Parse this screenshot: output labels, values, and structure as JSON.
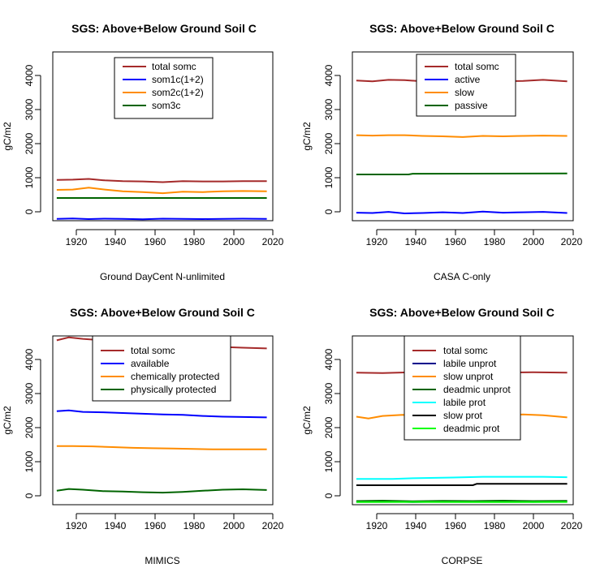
{
  "chart_data": [
    {
      "type": "line",
      "title": "SGS: Above+Below Ground Soil C",
      "xlabel": "Ground DayCent N-unlimited",
      "ylabel": "gC/m2",
      "xlim": [
        1910,
        2020
      ],
      "ylim": [
        0,
        4600
      ],
      "xticks": [
        1920,
        1940,
        1960,
        1980,
        2000,
        2020
      ],
      "yticks": [
        0,
        1000,
        2000,
        3000,
        4000
      ],
      "grid": false,
      "legend_position": "top-center",
      "series": [
        {
          "name": "total somc",
          "color": "#a52a2a",
          "x": [
            1912,
            1920,
            1928,
            1936,
            1945,
            1955,
            1965,
            1975,
            1985,
            1995,
            2005,
            2017
          ],
          "values": [
            1110,
            1120,
            1140,
            1100,
            1080,
            1070,
            1050,
            1080,
            1070,
            1070,
            1080,
            1080
          ]
        },
        {
          "name": "som1c(1+2)",
          "color": "#0000ff",
          "x": [
            1912,
            1920,
            1928,
            1936,
            1945,
            1955,
            1965,
            1975,
            1985,
            1995,
            2005,
            2017
          ],
          "values": [
            50,
            60,
            45,
            55,
            50,
            40,
            55,
            50,
            45,
            50,
            55,
            50
          ]
        },
        {
          "name": "som2c(1+2)",
          "color": "#ff8c00",
          "x": [
            1912,
            1920,
            1928,
            1936,
            1945,
            1955,
            1965,
            1975,
            1985,
            1995,
            2005,
            2017
          ],
          "values": [
            840,
            850,
            900,
            850,
            800,
            780,
            750,
            790,
            780,
            800,
            810,
            800
          ]
        },
        {
          "name": "som3c",
          "color": "#006400",
          "x": [
            1912,
            2017
          ],
          "values": [
            620,
            620
          ]
        }
      ]
    },
    {
      "type": "line",
      "title": "SGS: Above+Below Ground Soil C",
      "xlabel": "CASA C-only",
      "ylabel": "gC/m2",
      "xlim": [
        1910,
        2020
      ],
      "ylim": [
        0,
        4600
      ],
      "xticks": [
        1920,
        1940,
        1960,
        1980,
        2000,
        2020
      ],
      "yticks": [
        0,
        1000,
        2000,
        3000,
        4000
      ],
      "grid": false,
      "legend_position": "top-center",
      "series": [
        {
          "name": "total somc",
          "color": "#a52a2a",
          "x": [
            1912,
            1920,
            1928,
            1936,
            1945,
            1955,
            1965,
            1975,
            1985,
            1995,
            2005,
            2017
          ],
          "values": [
            3820,
            3800,
            3840,
            3830,
            3800,
            3810,
            3790,
            3820,
            3800,
            3810,
            3840,
            3800
          ]
        },
        {
          "name": "active",
          "color": "#0000ff",
          "x": [
            1912,
            1920,
            1928,
            1936,
            1945,
            1955,
            1965,
            1975,
            1985,
            1995,
            2005,
            2017
          ],
          "values": [
            220,
            210,
            240,
            200,
            210,
            230,
            210,
            250,
            220,
            230,
            240,
            210
          ]
        },
        {
          "name": "slow",
          "color": "#ff8c00",
          "x": [
            1912,
            1920,
            1928,
            1936,
            1945,
            1955,
            1965,
            1975,
            1985,
            1995,
            2005,
            2017
          ],
          "values": [
            2330,
            2320,
            2330,
            2330,
            2310,
            2300,
            2280,
            2310,
            2300,
            2310,
            2320,
            2310
          ]
        },
        {
          "name": "passive",
          "color": "#006400",
          "x": [
            1912,
            1938,
            1940,
            2017
          ],
          "values": [
            1260,
            1260,
            1280,
            1290
          ]
        }
      ]
    },
    {
      "type": "line",
      "title": "SGS: Above+Below Ground Soil C",
      "xlabel": "MIMICS",
      "ylabel": "gC/m2",
      "xlim": [
        1910,
        2020
      ],
      "ylim": [
        0,
        4600
      ],
      "xticks": [
        1920,
        1940,
        1960,
        1980,
        2000,
        2020
      ],
      "yticks": [
        0,
        1000,
        2000,
        3000,
        4000
      ],
      "grid": false,
      "legend_position": "top-center",
      "series": [
        {
          "name": "total somc",
          "color": "#a52a2a",
          "x": [
            1912,
            1918,
            1925,
            1935,
            1945,
            1955,
            1965,
            1975,
            1985,
            1995,
            2005,
            2017
          ],
          "values": [
            4480,
            4560,
            4520,
            4480,
            4450,
            4400,
            4380,
            4340,
            4320,
            4300,
            4280,
            4260
          ]
        },
        {
          "name": "available",
          "color": "#0000ff",
          "x": [
            1912,
            1918,
            1925,
            1935,
            1945,
            1955,
            1965,
            1975,
            1985,
            1995,
            2005,
            2017
          ],
          "values": [
            2550,
            2570,
            2530,
            2520,
            2500,
            2480,
            2460,
            2450,
            2420,
            2400,
            2390,
            2380
          ]
        },
        {
          "name": "chemically protected",
          "color": "#ff8c00",
          "x": [
            1912,
            1920,
            1930,
            1940,
            1950,
            1960,
            1970,
            1980,
            1990,
            2000,
            2010,
            2017
          ],
          "values": [
            1600,
            1600,
            1590,
            1570,
            1550,
            1540,
            1530,
            1520,
            1510,
            1510,
            1510,
            1510
          ]
        },
        {
          "name": "physically protected",
          "color": "#006400",
          "x": [
            1912,
            1918,
            1925,
            1935,
            1945,
            1955,
            1965,
            1975,
            1985,
            1995,
            2005,
            2017
          ],
          "values": [
            380,
            430,
            410,
            370,
            360,
            340,
            330,
            350,
            380,
            410,
            420,
            400
          ]
        }
      ]
    },
    {
      "type": "line",
      "title": "SGS: Above+Below Ground Soil C",
      "xlabel": "CORPSE",
      "ylabel": "gC/m2",
      "xlim": [
        1910,
        2020
      ],
      "ylim": [
        0,
        4600
      ],
      "xticks": [
        1920,
        1940,
        1960,
        1980,
        2000,
        2020
      ],
      "yticks": [
        0,
        1000,
        2000,
        3000,
        4000
      ],
      "grid": false,
      "legend_position": "top-center",
      "series": [
        {
          "name": "total somc",
          "color": "#a52a2a",
          "x": [
            1912,
            1925,
            1940,
            1955,
            1970,
            1985,
            2000,
            2017
          ],
          "values": [
            3600,
            3590,
            3610,
            3600,
            3590,
            3600,
            3610,
            3600
          ]
        },
        {
          "name": "labile unprot",
          "color": "#00008b",
          "x": [
            1912,
            1925,
            1940,
            1955,
            1970,
            1985,
            2000,
            2017
          ],
          "values": [
            80,
            90,
            70,
            85,
            80,
            90,
            75,
            85
          ]
        },
        {
          "name": "slow unprot",
          "color": "#ff8c00",
          "x": [
            1912,
            1918,
            1925,
            1935,
            1945,
            1955,
            1965,
            1975,
            1985,
            1995,
            2005,
            2017
          ],
          "values": [
            2400,
            2350,
            2420,
            2450,
            2430,
            2460,
            2440,
            2450,
            2430,
            2460,
            2440,
            2380
          ]
        },
        {
          "name": "deadmic unprot",
          "color": "#006400",
          "x": [
            1912,
            1925,
            1940,
            1955,
            1970,
            1985,
            2000,
            2017
          ],
          "values": [
            100,
            110,
            95,
            105,
            100,
            110,
            100,
            105
          ]
        },
        {
          "name": "labile prot",
          "color": "#00ffff",
          "x": [
            1912,
            1930,
            1940,
            1960,
            1975,
            1990,
            2005,
            2017
          ],
          "values": [
            700,
            700,
            720,
            740,
            760,
            760,
            760,
            750
          ]
        },
        {
          "name": "slow prot",
          "color": "#000000",
          "x": [
            1912,
            1970,
            1972,
            2017
          ],
          "values": [
            530,
            530,
            570,
            570
          ]
        },
        {
          "name": "deadmic prot",
          "color": "#00ff00",
          "x": [
            1912,
            1940,
            1970,
            2017
          ],
          "values": [
            70,
            75,
            70,
            75
          ]
        }
      ]
    }
  ]
}
